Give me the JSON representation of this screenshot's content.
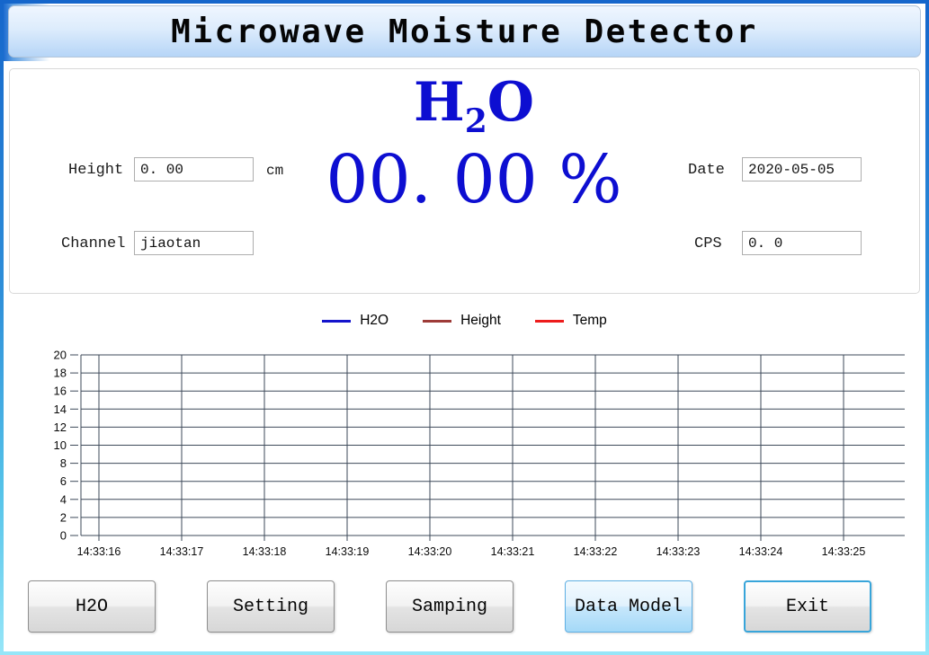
{
  "window": {
    "title": "Microwave Moisture Detector"
  },
  "panel": {
    "height": {
      "label": "Height",
      "value": "0. 00",
      "unit": "cm"
    },
    "channel": {
      "label": "Channel",
      "value": "jiaotan"
    },
    "date": {
      "label": "Date",
      "value": "2020-05-05"
    },
    "cps": {
      "label": "CPS",
      "value": "0. 0"
    },
    "display": {
      "compound_base": "H",
      "compound_sub": "2",
      "compound_tail": "O",
      "value": "00. 00 %"
    }
  },
  "chart_data": {
    "type": "line",
    "title": "",
    "xlabel": "",
    "ylabel": "",
    "x": [
      "14:33:16",
      "14:33:17",
      "14:33:18",
      "14:33:19",
      "14:33:20",
      "14:33:21",
      "14:33:22",
      "14:33:23",
      "14:33:24",
      "14:33:25"
    ],
    "ylim": [
      0,
      20
    ],
    "ytick_step": 2,
    "grid": true,
    "grid_color": "#3e4a5a",
    "legend_position": "top-center",
    "series": [
      {
        "name": "H2O",
        "color": "#1414cc",
        "values": []
      },
      {
        "name": "Height",
        "color": "#9e3b38",
        "values": []
      },
      {
        "name": "Temp",
        "color": "#ed1c1c",
        "values": []
      }
    ]
  },
  "buttons": [
    {
      "label": "H2O",
      "state": "normal"
    },
    {
      "label": "Setting",
      "state": "normal"
    },
    {
      "label": "Samping",
      "state": "normal"
    },
    {
      "label": "Data Model",
      "state": "active"
    },
    {
      "label": "Exit",
      "state": "focused"
    }
  ]
}
